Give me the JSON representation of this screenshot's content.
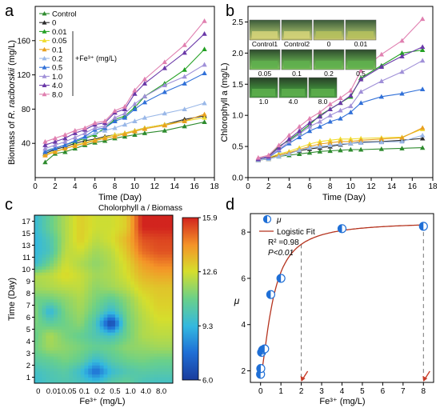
{
  "figure": {
    "panel_letters": [
      "a",
      "b",
      "c",
      "d"
    ]
  },
  "chart_data": [
    {
      "panel": "a",
      "type": "line",
      "xlabel": "Time (Day)",
      "ylabel": "Biomass of R. raciborskii (mg/L)",
      "ylabel_main": "Biomass of ",
      "ylabel_species": "R. raciborskii",
      "ylabel_unit": " (mg/L)",
      "xlim": [
        0,
        18
      ],
      "ylim": [
        0,
        200
      ],
      "xticks": [
        0,
        2,
        4,
        6,
        8,
        10,
        12,
        14,
        16,
        18
      ],
      "yticks": [
        40,
        80,
        120,
        160
      ],
      "legend_note": "+Fe³⁺ (mg/L)",
      "x": [
        1,
        2,
        3,
        4,
        5,
        6,
        7,
        8,
        9,
        10,
        11,
        13,
        15,
        17
      ],
      "series": [
        {
          "name": "Control",
          "color": "#2e8b2e",
          "marker": "tri-up",
          "values": [
            18,
            28,
            30,
            34,
            38,
            41,
            43,
            46,
            48,
            50,
            52,
            55,
            60,
            65
          ]
        },
        {
          "name": "0",
          "color": "#2b2b2b",
          "marker": "tri-up",
          "values": [
            28,
            33,
            36,
            40,
            43,
            45,
            48,
            50,
            52,
            55,
            58,
            62,
            68,
            72
          ]
        },
        {
          "name": "0.01",
          "color": "#22a022",
          "marker": "tri-up",
          "values": [
            30,
            35,
            38,
            42,
            46,
            50,
            58,
            68,
            72,
            82,
            95,
            110,
            126,
            150
          ]
        },
        {
          "name": "0.05",
          "color": "#f0dc30",
          "marker": "tri-up",
          "values": [
            27,
            31,
            34,
            38,
            41,
            44,
            47,
            50,
            52,
            55,
            58,
            62,
            66,
            70
          ]
        },
        {
          "name": "0.1",
          "color": "#e8a020",
          "marker": "tri-up",
          "values": [
            26,
            30,
            34,
            37,
            40,
            43,
            46,
            48,
            51,
            54,
            57,
            61,
            66,
            74
          ]
        },
        {
          "name": "0.2",
          "color": "#9ab8e8",
          "marker": "tri-up",
          "values": [
            32,
            35,
            38,
            43,
            47,
            52,
            55,
            58,
            62,
            66,
            70,
            75,
            80,
            87
          ]
        },
        {
          "name": "0.5",
          "color": "#3070d8",
          "marker": "tri-up",
          "values": [
            30,
            34,
            38,
            43,
            48,
            56,
            58,
            66,
            70,
            80,
            88,
            100,
            110,
            122
          ]
        },
        {
          "name": "1.0",
          "color": "#a090d8",
          "marker": "tri-up",
          "values": [
            34,
            38,
            42,
            47,
            52,
            58,
            60,
            70,
            75,
            86,
            95,
            108,
            118,
            132
          ]
        },
        {
          "name": "4.0",
          "color": "#6a38a8",
          "marker": "tri-up",
          "values": [
            38,
            42,
            46,
            52,
            56,
            62,
            64,
            76,
            80,
            98,
            110,
            128,
            146,
            168
          ]
        },
        {
          "name": "8.0",
          "color": "#e080b0",
          "marker": "tri-up",
          "values": [
            42,
            46,
            50,
            55,
            58,
            64,
            66,
            78,
            83,
            102,
            115,
            135,
            155,
            183
          ]
        }
      ]
    },
    {
      "panel": "b",
      "type": "line",
      "xlabel": "Time (Day)",
      "ylabel": "Chlorophyll a (mg/L)",
      "xlim": [
        0,
        18
      ],
      "ylim": [
        0,
        2.75
      ],
      "xticks": [
        0,
        2,
        4,
        6,
        8,
        10,
        12,
        14,
        16,
        18
      ],
      "yticks": [
        0.0,
        0.5,
        1.0,
        1.5,
        2.0,
        2.5
      ],
      "x": [
        1,
        2,
        3,
        4,
        5,
        6,
        7,
        8,
        9,
        10,
        11,
        13,
        15,
        17
      ],
      "series": [
        {
          "name": "Control",
          "color": "#2e8b2e",
          "values": [
            0.28,
            0.3,
            0.34,
            0.36,
            0.38,
            0.4,
            0.42,
            0.43,
            0.44,
            0.45,
            0.45,
            0.46,
            0.47,
            0.48
          ]
        },
        {
          "name": "0",
          "color": "#2b2b2b",
          "values": [
            0.3,
            0.32,
            0.36,
            0.4,
            0.43,
            0.46,
            0.48,
            0.5,
            0.53,
            0.55,
            0.57,
            0.58,
            0.6,
            0.63
          ]
        },
        {
          "name": "0.01",
          "color": "#22a022",
          "values": [
            0.3,
            0.34,
            0.5,
            0.6,
            0.72,
            0.85,
            1.0,
            1.1,
            1.2,
            1.3,
            1.6,
            1.8,
            2.0,
            2.05
          ]
        },
        {
          "name": "0.05",
          "color": "#f0dc30",
          "values": [
            0.3,
            0.32,
            0.38,
            0.42,
            0.48,
            0.54,
            0.58,
            0.6,
            0.62,
            0.62,
            0.63,
            0.64,
            0.65,
            0.78
          ]
        },
        {
          "name": "0.1",
          "color": "#e8a020",
          "values": [
            0.28,
            0.3,
            0.36,
            0.4,
            0.45,
            0.5,
            0.54,
            0.56,
            0.58,
            0.58,
            0.6,
            0.62,
            0.64,
            0.8
          ]
        },
        {
          "name": "0.2",
          "color": "#9ab8e8",
          "values": [
            0.28,
            0.3,
            0.34,
            0.38,
            0.44,
            0.48,
            0.5,
            0.52,
            0.54,
            0.55,
            0.56,
            0.57,
            0.58,
            0.68
          ]
        },
        {
          "name": "0.5",
          "color": "#3070d8",
          "values": [
            0.3,
            0.32,
            0.44,
            0.55,
            0.65,
            0.75,
            0.82,
            0.9,
            0.95,
            1.05,
            1.2,
            1.3,
            1.35,
            1.42
          ]
        },
        {
          "name": "1.0",
          "color": "#a090d8",
          "values": [
            0.3,
            0.33,
            0.45,
            0.58,
            0.7,
            0.82,
            0.9,
            1.0,
            1.08,
            1.15,
            1.38,
            1.55,
            1.7,
            1.88
          ]
        },
        {
          "name": "4.0",
          "color": "#6a38a8",
          "values": [
            0.3,
            0.34,
            0.48,
            0.62,
            0.75,
            0.88,
            0.98,
            1.1,
            1.2,
            1.32,
            1.58,
            1.78,
            1.95,
            2.1
          ]
        },
        {
          "name": "8.0",
          "color": "#e080b0",
          "values": [
            0.32,
            0.36,
            0.52,
            0.68,
            0.82,
            0.95,
            1.05,
            1.18,
            1.28,
            1.4,
            1.72,
            1.98,
            2.2,
            2.55
          ]
        }
      ],
      "photo_labels_row1": [
        "Control1",
        "Control2",
        "0",
        "0.01"
      ],
      "photo_labels_row2": [
        "0.05",
        "0.1",
        "0.2",
        "0.5"
      ],
      "photo_labels_row3": [
        "1.0",
        "4.0",
        "8.0"
      ]
    },
    {
      "panel": "c",
      "type": "heatmap",
      "title": "Cholorphyll a / Biomass",
      "xlabel": "Fe³⁺ (mg/L)",
      "ylabel": "Time (Day)",
      "x_categories": [
        "0",
        "0.01",
        "0.05",
        "0.1",
        "0.2",
        "0.5",
        "1.0",
        "4.0",
        "8.0"
      ],
      "y_categories": [
        "1",
        "2",
        "3",
        "4",
        "5",
        "6",
        "7",
        "8",
        "9",
        "10",
        "11",
        "13",
        "15",
        "17"
      ],
      "colorbar_ticks": [
        "15.9",
        "12.6",
        "9.3",
        "6.0"
      ],
      "colorbar_range": [
        6.0,
        15.9
      ],
      "z": [
        [
          9.5,
          10.0,
          10.2,
          10.0,
          9.8,
          10.5,
          10.8,
          10.0,
          9.8
        ],
        [
          9.8,
          10.2,
          10.5,
          9.6,
          7.4,
          9.5,
          10.2,
          10.5,
          10.4
        ],
        [
          10.5,
          10.8,
          11.2,
          10.8,
          9.6,
          10.5,
          11.0,
          11.2,
          11.0
        ],
        [
          11.0,
          11.8,
          11.5,
          11.2,
          10.8,
          11.0,
          11.5,
          11.6,
          11.8
        ],
        [
          10.8,
          12.0,
          11.2,
          10.8,
          10.2,
          9.8,
          11.0,
          12.0,
          12.2
        ],
        [
          11.2,
          10.6,
          11.0,
          11.5,
          10.0,
          6.0,
          11.0,
          12.0,
          12.5
        ],
        [
          11.5,
          9.2,
          11.2,
          11.8,
          10.8,
          9.4,
          11.2,
          12.2,
          12.8
        ],
        [
          11.0,
          11.0,
          11.5,
          12.0,
          11.2,
          10.6,
          11.5,
          12.5,
          13.0
        ],
        [
          11.8,
          12.0,
          12.2,
          12.3,
          11.5,
          11.8,
          12.2,
          13.0,
          13.2
        ],
        [
          12.0,
          12.2,
          12.8,
          12.4,
          11.8,
          12.0,
          12.6,
          13.5,
          13.8
        ],
        [
          9.4,
          11.0,
          12.5,
          12.0,
          11.5,
          12.0,
          12.8,
          14.0,
          14.5
        ],
        [
          9.3,
          10.0,
          12.2,
          12.5,
          11.8,
          12.2,
          13.2,
          14.8,
          15.2
        ],
        [
          9.2,
          10.2,
          12.0,
          13.0,
          12.2,
          12.6,
          13.5,
          15.2,
          15.4
        ],
        [
          9.4,
          10.8,
          12.0,
          13.0,
          12.5,
          12.5,
          13.0,
          15.9,
          15.9
        ]
      ]
    },
    {
      "panel": "d",
      "type": "scatter",
      "xlabel": "Fe³⁺ (mg/L)",
      "ylabel": "μ",
      "xlim": [
        -0.5,
        8.5
      ],
      "ylim": [
        1.5,
        8.8
      ],
      "xticks": [
        0,
        1,
        2,
        3,
        4,
        5,
        6,
        7,
        8
      ],
      "yticks": [
        2,
        4,
        6,
        8
      ],
      "legend": [
        "μ",
        "Logistic Fit"
      ],
      "annotation_r2": "R² =0.98",
      "annotation_p": "P<0.01",
      "points": [
        {
          "x": 0.0,
          "y": 1.85
        },
        {
          "x": 0.01,
          "y": 2.1
        },
        {
          "x": 0.05,
          "y": 2.8
        },
        {
          "x": 0.1,
          "y": 2.9
        },
        {
          "x": 0.2,
          "y": 2.95
        },
        {
          "x": 0.5,
          "y": 5.3
        },
        {
          "x": 1.0,
          "y": 6.0
        },
        {
          "x": 4.0,
          "y": 8.15
        },
        {
          "x": 8.0,
          "y": 8.25
        }
      ],
      "fit": {
        "A1": 1.8,
        "A2": 8.45,
        "x0": 0.62,
        "p": 1.5
      },
      "dashed_x": [
        2,
        8
      ]
    }
  ]
}
